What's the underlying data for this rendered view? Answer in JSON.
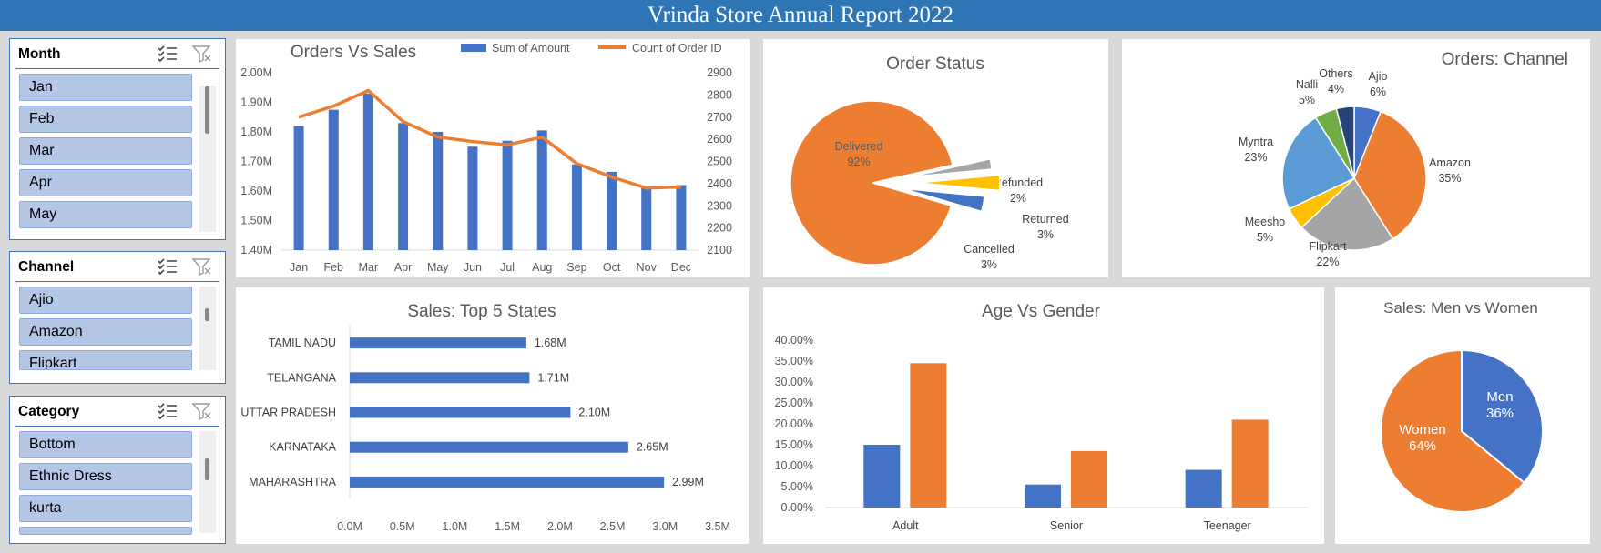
{
  "header": {
    "title": "Vrinda Store Annual Report 2022"
  },
  "slicers": [
    {
      "title": "Month",
      "items": [
        "Jan",
        "Feb",
        "Mar",
        "Apr",
        "May"
      ]
    },
    {
      "title": "Channel",
      "items": [
        "Ajio",
        "Amazon",
        "Flipkart"
      ]
    },
    {
      "title": "Category",
      "items": [
        "Bottom",
        "Ethnic Dress",
        "kurta",
        ""
      ]
    }
  ],
  "icons": {
    "multiselect": "multi-select-icon",
    "clear_filter": "clear-filter-icon"
  },
  "colors": {
    "blue": "#4472c4",
    "orange": "#ed7d31",
    "gray": "#a5a5a5",
    "yellow": "#ffc000",
    "lightblue": "#5b9bd5",
    "green": "#70ad47",
    "navy": "#264478",
    "header": "#2e75b6"
  },
  "chart_data": [
    {
      "id": "orders_vs_sales",
      "type": "bar",
      "title": "Orders Vs Sales",
      "categories": [
        "Jan",
        "Feb",
        "Mar",
        "Apr",
        "May",
        "Jun",
        "Jul",
        "Aug",
        "Sep",
        "Oct",
        "Nov",
        "Dec"
      ],
      "series": [
        {
          "name": "Sum of Amount",
          "type": "bar",
          "axis": "left",
          "values": [
            1820000,
            1875000,
            1930000,
            1830000,
            1800000,
            1750000,
            1770000,
            1805000,
            1690000,
            1665000,
            1610000,
            1620000
          ]
        },
        {
          "name": "Count of Order ID",
          "type": "line",
          "axis": "right",
          "values": [
            2700,
            2750,
            2820,
            2680,
            2610,
            2590,
            2575,
            2610,
            2490,
            2430,
            2380,
            2385
          ]
        }
      ],
      "y_left": {
        "min": 1400000,
        "max": 2000000,
        "ticks": [
          "1.40M",
          "1.50M",
          "1.60M",
          "1.70M",
          "1.80M",
          "1.90M",
          "2.00M"
        ]
      },
      "y_right": {
        "min": 2100,
        "max": 2900,
        "ticks": [
          "2100",
          "2200",
          "2300",
          "2400",
          "2500",
          "2600",
          "2700",
          "2800",
          "2900"
        ]
      },
      "legend": "top"
    },
    {
      "id": "order_status",
      "type": "pie",
      "title": "Order Status",
      "slices": [
        {
          "label": "Delivered",
          "pct": "92%",
          "value": 92,
          "color": "#ed7d31"
        },
        {
          "label": "Refunded",
          "pct": "2%",
          "value": 2,
          "color": "#a5a5a5"
        },
        {
          "label": "Returned",
          "pct": "3%",
          "value": 3,
          "color": "#ffc000"
        },
        {
          "label": "Cancelled",
          "pct": "3%",
          "value": 3,
          "color": "#4472c4"
        }
      ]
    },
    {
      "id": "orders_channel",
      "type": "pie",
      "title": "Orders: Channel",
      "slices": [
        {
          "label": "Ajio",
          "pct": "6%",
          "value": 6,
          "color": "#4472c4"
        },
        {
          "label": "Amazon",
          "pct": "35%",
          "value": 35,
          "color": "#ed7d31"
        },
        {
          "label": "Flipkart",
          "pct": "22%",
          "value": 22,
          "color": "#a5a5a5"
        },
        {
          "label": "Meesho",
          "pct": "5%",
          "value": 5,
          "color": "#ffc000"
        },
        {
          "label": "Myntra",
          "pct": "23%",
          "value": 23,
          "color": "#5b9bd5"
        },
        {
          "label": "Nalli",
          "pct": "5%",
          "value": 5,
          "color": "#70ad47"
        },
        {
          "label": "Others",
          "pct": "4%",
          "value": 4,
          "color": "#264478"
        }
      ]
    },
    {
      "id": "top_states",
      "type": "bar",
      "orientation": "horizontal",
      "title": "Sales: Top 5 States",
      "categories": [
        "TAMIL NADU",
        "TELANGANA",
        "UTTAR PRADESH",
        "KARNATAKA",
        "MAHARASHTRA"
      ],
      "values": [
        1680000,
        1710000,
        2100000,
        2650000,
        2990000
      ],
      "data_labels": [
        "1.68M",
        "1.71M",
        "2.10M",
        "2.65M",
        "2.99M"
      ],
      "x_ticks": [
        "0.0M",
        "0.5M",
        "1.0M",
        "1.5M",
        "2.0M",
        "2.5M",
        "3.0M",
        "3.5M"
      ],
      "xlim": [
        0,
        3500000
      ]
    },
    {
      "id": "age_vs_gender",
      "type": "bar",
      "title": "Age Vs Gender",
      "categories": [
        "Adult",
        "Senior",
        "Teenager"
      ],
      "series": [
        {
          "values": [
            0.15,
            0.055,
            0.09
          ],
          "color": "#4472c4"
        },
        {
          "values": [
            0.345,
            0.135,
            0.21
          ],
          "color": "#ed7d31"
        }
      ],
      "y_ticks": [
        "0.00%",
        "5.00%",
        "10.00%",
        "15.00%",
        "20.00%",
        "25.00%",
        "30.00%",
        "35.00%",
        "40.00%"
      ],
      "ylim": [
        0,
        0.4
      ]
    },
    {
      "id": "men_vs_women",
      "type": "pie",
      "title": "Sales: Men vs Women",
      "slices": [
        {
          "label": "Men",
          "pct": "36%",
          "value": 36,
          "color": "#4472c4"
        },
        {
          "label": "Women",
          "pct": "64%",
          "value": 64,
          "color": "#ed7d31"
        }
      ]
    }
  ]
}
